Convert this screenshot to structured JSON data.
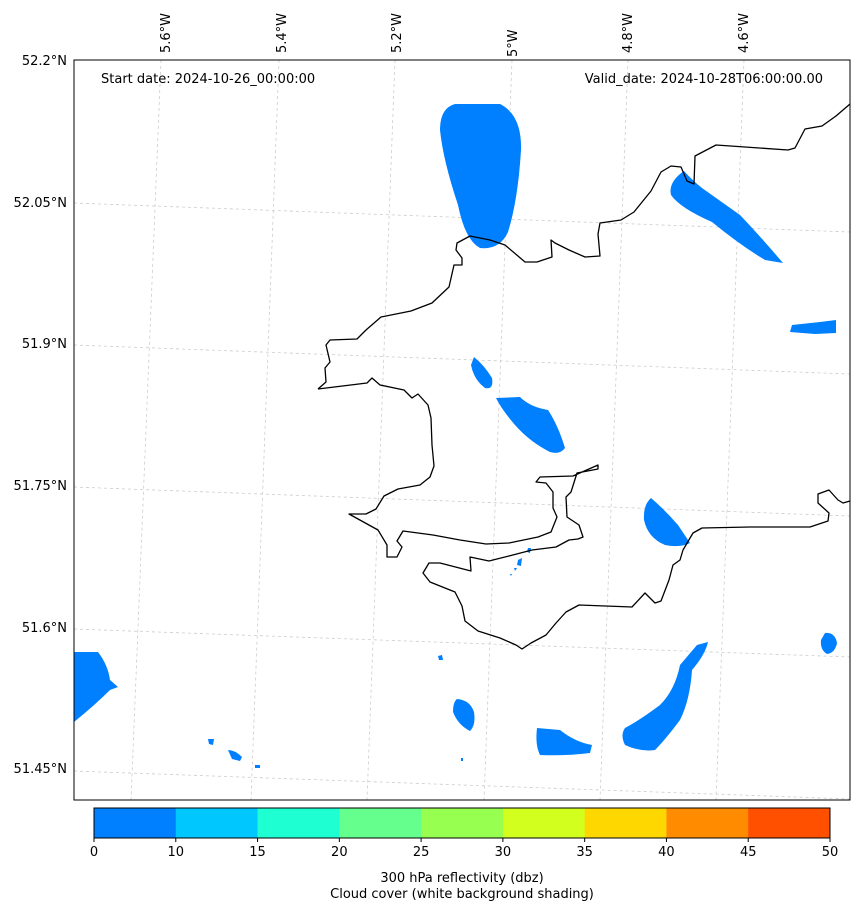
{
  "header": {
    "start_date": "Start date: 2024-10-26_00:00:00",
    "valid_date": "Valid_date: 2024-10-28T06:00:00.00"
  },
  "axes": {
    "lon_labels": [
      "5.6°W",
      "5.4°W",
      "5.2°W",
      "5°W",
      "4.8°W",
      "4.6°W"
    ],
    "lat_labels": [
      "52.2°N",
      "52.05°N",
      "51.9°N",
      "51.75°N",
      "51.6°N",
      "51.45°N"
    ]
  },
  "colorbar": {
    "ticks": [
      "0",
      "10",
      "15",
      "20",
      "25",
      "30",
      "35",
      "40",
      "45",
      "50"
    ],
    "colors": [
      "#0080ff",
      "#00c8ff",
      "#1effd2",
      "#64ff8c",
      "#96ff50",
      "#d2ff1e",
      "#ffd700",
      "#ff8c00",
      "#ff5000"
    ],
    "label_line1": "300 hPa reflectivity (dbz)",
    "label_line2": "Cloud cover (white background shading)"
  },
  "colors": {
    "reflectivity_fill": "#0080ff",
    "coastline": "#000000",
    "gridline": "#cccccc"
  }
}
